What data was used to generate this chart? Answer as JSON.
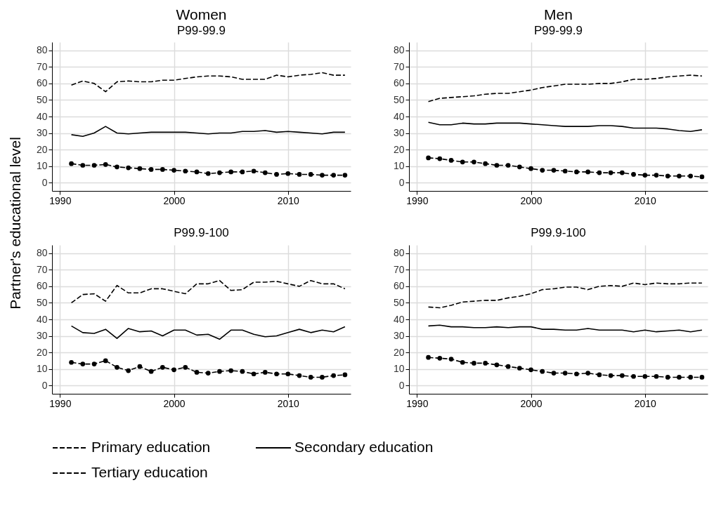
{
  "chart_data": [
    {
      "type": "line",
      "title": "Women",
      "subtitle": "P99-99.9",
      "legend": "bottom",
      "ylabel": "Partner's educational level",
      "x": [
        1991,
        1992,
        1993,
        1994,
        1995,
        1996,
        1997,
        1998,
        1999,
        2000,
        2001,
        2002,
        2003,
        2004,
        2005,
        2006,
        2007,
        2008,
        2009,
        2010,
        2011,
        2012,
        2013,
        2014,
        2015
      ],
      "xlim": [
        1989.3,
        2015.5
      ],
      "xticks": [
        1990,
        2000,
        2010
      ],
      "ylim": [
        -5,
        85
      ],
      "yticks": [
        0,
        10,
        20,
        30,
        40,
        50,
        60,
        70,
        80
      ],
      "grid": true,
      "series": [
        {
          "name": "Primary education",
          "color": "#000000",
          "line_style": "dashed",
          "marker": "circle",
          "values": [
            11.5,
            10.5,
            10.5,
            11,
            9.5,
            9,
            8.5,
            8,
            8,
            7.5,
            7,
            6.5,
            5.5,
            6,
            6.5,
            6.5,
            7,
            6,
            5,
            5.5,
            5,
            5,
            4.5,
            4.5,
            4.5
          ]
        },
        {
          "name": "Secondary education",
          "color": "#000000",
          "line_style": "solid",
          "values": [
            29,
            28,
            30,
            34,
            30,
            29.5,
            30,
            30.5,
            30.5,
            30.5,
            30.5,
            30,
            29.5,
            30,
            30,
            31,
            31,
            31.5,
            30.5,
            31,
            30.5,
            30,
            29.5,
            30.5,
            30.5
          ]
        },
        {
          "name": "Tertiary education",
          "color": "#000000",
          "line_style": "dashed",
          "values": [
            59,
            61.5,
            60,
            55,
            61,
            61.5,
            61,
            61,
            62,
            62,
            63,
            64,
            64.5,
            64.5,
            64,
            62.5,
            62.5,
            62.5,
            65,
            64,
            65,
            65.5,
            66.5,
            65,
            65
          ]
        }
      ]
    },
    {
      "type": "line",
      "title": "Men",
      "subtitle": "P99-99.9",
      "legend": "bottom",
      "x": [
        1991,
        1992,
        1993,
        1994,
        1995,
        1996,
        1997,
        1998,
        1999,
        2000,
        2001,
        2002,
        2003,
        2004,
        2005,
        2006,
        2007,
        2008,
        2009,
        2010,
        2011,
        2012,
        2013,
        2014,
        2015
      ],
      "xlim": [
        1989.3,
        2015.5
      ],
      "xticks": [
        1990,
        2000,
        2010
      ],
      "ylim": [
        -5,
        85
      ],
      "yticks": [
        0,
        10,
        20,
        30,
        40,
        50,
        60,
        70,
        80
      ],
      "grid": true,
      "series": [
        {
          "name": "Primary education",
          "color": "#000000",
          "line_style": "dashed",
          "marker": "circle",
          "values": [
            15,
            14.5,
            13.5,
            12.5,
            12.5,
            11.5,
            10.5,
            10.5,
            9.5,
            8.5,
            7.5,
            7.5,
            7,
            6.5,
            6.5,
            6,
            6,
            6,
            5,
            4.5,
            4.5,
            4,
            4,
            4,
            3.5
          ]
        },
        {
          "name": "Secondary education",
          "color": "#000000",
          "line_style": "solid",
          "values": [
            36.5,
            35,
            35,
            36,
            35.5,
            35.5,
            36,
            36,
            36,
            35.5,
            35,
            34.5,
            34,
            34,
            34,
            34.5,
            34.5,
            34,
            33,
            33,
            33,
            32.5,
            31.5,
            31,
            32
          ]
        },
        {
          "name": "Tertiary education",
          "color": "#000000",
          "line_style": "dashed",
          "values": [
            49,
            51,
            51.5,
            52,
            52.5,
            53.5,
            54,
            54,
            55,
            56,
            57.5,
            58.5,
            59.5,
            59.5,
            59.5,
            60,
            60,
            61,
            62.5,
            62.5,
            63,
            64,
            64.5,
            65,
            64.5
          ]
        }
      ]
    },
    {
      "type": "line",
      "title": "P99.9-100",
      "legend": "bottom",
      "x": [
        1991,
        1992,
        1993,
        1994,
        1995,
        1996,
        1997,
        1998,
        1999,
        2000,
        2001,
        2002,
        2003,
        2004,
        2005,
        2006,
        2007,
        2008,
        2009,
        2010,
        2011,
        2012,
        2013,
        2014,
        2015
      ],
      "xlim": [
        1989.3,
        2015.5
      ],
      "xticks": [
        1990,
        2000,
        2010
      ],
      "ylim": [
        -5,
        85
      ],
      "yticks": [
        0,
        10,
        20,
        30,
        40,
        50,
        60,
        70,
        80
      ],
      "grid": true,
      "series": [
        {
          "name": "Primary education",
          "color": "#000000",
          "line_style": "dashed",
          "marker": "circle",
          "values": [
            14,
            13,
            13,
            15,
            11,
            9,
            11.5,
            8.5,
            11,
            9.5,
            11,
            8,
            7.5,
            8.5,
            9,
            8.5,
            7,
            8,
            7,
            7,
            6,
            5,
            5,
            6,
            6.5
          ]
        },
        {
          "name": "Secondary education",
          "color": "#000000",
          "line_style": "solid",
          "values": [
            36,
            32,
            31.5,
            34,
            28.5,
            34.5,
            32.5,
            33,
            30,
            33.5,
            33.5,
            30.5,
            31,
            28,
            33.5,
            33.5,
            31,
            29.5,
            30,
            32,
            34,
            32,
            33.5,
            32.5,
            35.5
          ]
        },
        {
          "name": "Tertiary education",
          "color": "#000000",
          "line_style": "dashed",
          "values": [
            50,
            55,
            55.5,
            51,
            60.5,
            56,
            56,
            58.5,
            58.5,
            57,
            55.5,
            61.5,
            61.5,
            63.5,
            57.5,
            58,
            62.5,
            62.5,
            63,
            61.5,
            60,
            63.5,
            61.5,
            61.5,
            58.5
          ]
        }
      ]
    },
    {
      "type": "line",
      "title": "P99.9-100",
      "legend": "bottom",
      "x": [
        1991,
        1992,
        1993,
        1994,
        1995,
        1996,
        1997,
        1998,
        1999,
        2000,
        2001,
        2002,
        2003,
        2004,
        2005,
        2006,
        2007,
        2008,
        2009,
        2010,
        2011,
        2012,
        2013,
        2014,
        2015
      ],
      "xlim": [
        1989.3,
        2015.5
      ],
      "xticks": [
        1990,
        2000,
        2010
      ],
      "ylim": [
        -5,
        85
      ],
      "yticks": [
        0,
        10,
        20,
        30,
        40,
        50,
        60,
        70,
        80
      ],
      "grid": true,
      "series": [
        {
          "name": "Primary education",
          "color": "#000000",
          "line_style": "dashed",
          "marker": "circle",
          "values": [
            17,
            16.5,
            16,
            14,
            13.5,
            13.5,
            12.5,
            11.5,
            10.5,
            9.5,
            8.5,
            7.5,
            7.5,
            7,
            7.5,
            6.5,
            6,
            6,
            5.5,
            5.5,
            5.5,
            5,
            5,
            5,
            5
          ]
        },
        {
          "name": "Secondary education",
          "color": "#000000",
          "line_style": "solid",
          "values": [
            36,
            36.5,
            35.5,
            35.5,
            35,
            35,
            35.5,
            35,
            35.5,
            35.5,
            34,
            34,
            33.5,
            33.5,
            34.5,
            33.5,
            33.5,
            33.5,
            32.5,
            33.5,
            32.5,
            33,
            33.5,
            32.5,
            33.5
          ]
        },
        {
          "name": "Tertiary education",
          "color": "#000000",
          "line_style": "dashed",
          "values": [
            47.5,
            47,
            48.5,
            50.5,
            51,
            51.5,
            51.5,
            53,
            54,
            55.5,
            58,
            58.5,
            59.5,
            59.5,
            58,
            60,
            60.5,
            60,
            62,
            61,
            62,
            61.5,
            61.5,
            62,
            62
          ]
        }
      ]
    }
  ]
}
